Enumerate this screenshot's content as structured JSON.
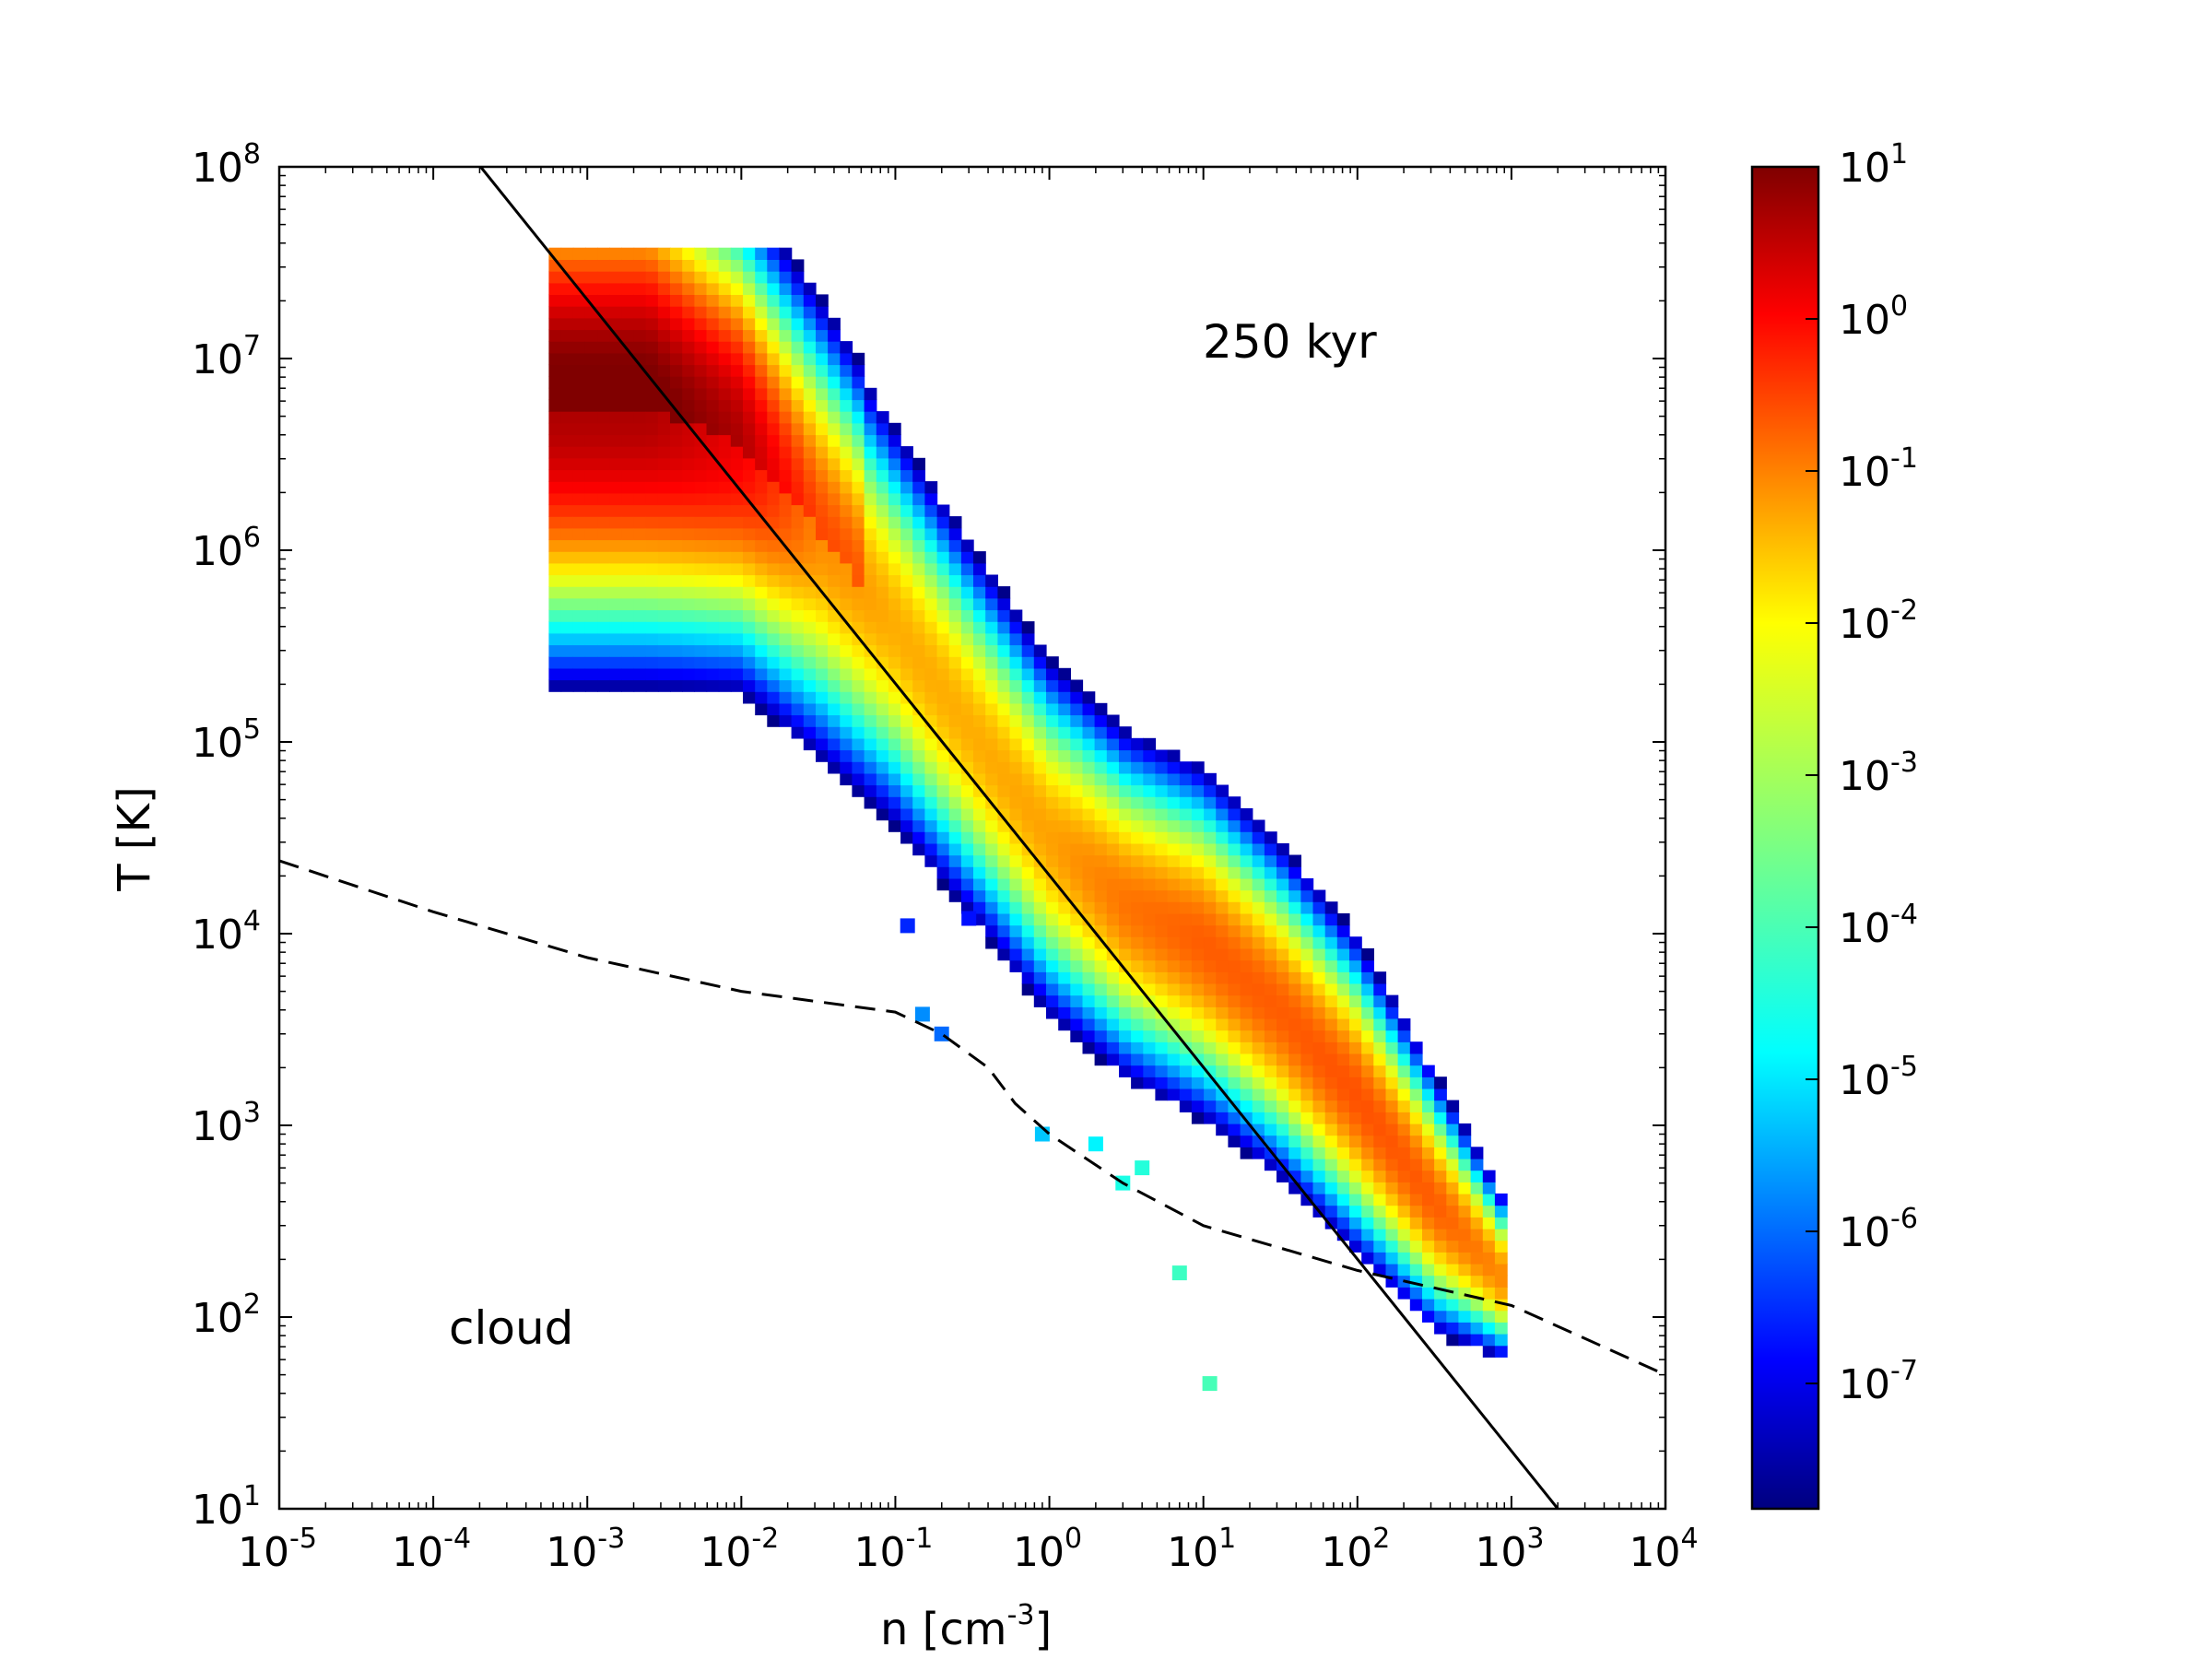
{
  "chart_data": {
    "type": "heatmap",
    "annotations": [
      {
        "text": "250 kyr"
      },
      {
        "text": "cloud"
      }
    ],
    "x_axis": {
      "label": "n [cm",
      "label_sup": "-3",
      "label_end": "]",
      "scale": "log",
      "lim": [
        1e-05,
        10000.0
      ],
      "ticks": [
        {
          "base": "10",
          "exp": "-5",
          "value": 1e-05
        },
        {
          "base": "10",
          "exp": "-4",
          "value": 0.0001
        },
        {
          "base": "10",
          "exp": "-3",
          "value": 0.001
        },
        {
          "base": "10",
          "exp": "-2",
          "value": 0.01
        },
        {
          "base": "10",
          "exp": "-1",
          "value": 0.1
        },
        {
          "base": "10",
          "exp": "0",
          "value": 1
        },
        {
          "base": "10",
          "exp": "1",
          "value": 10
        },
        {
          "base": "10",
          "exp": "2",
          "value": 100
        },
        {
          "base": "10",
          "exp": "3",
          "value": 1000
        },
        {
          "base": "10",
          "exp": "4",
          "value": 10000
        }
      ]
    },
    "y_axis": {
      "label": "T [K]",
      "scale": "log",
      "lim": [
        10,
        100000000.0
      ],
      "ticks": [
        {
          "base": "10",
          "exp": "1",
          "value": 10
        },
        {
          "base": "10",
          "exp": "2",
          "value": 100
        },
        {
          "base": "10",
          "exp": "3",
          "value": 1000
        },
        {
          "base": "10",
          "exp": "4",
          "value": 10000
        },
        {
          "base": "10",
          "exp": "5",
          "value": 100000
        },
        {
          "base": "10",
          "exp": "6",
          "value": 1000000
        },
        {
          "base": "10",
          "exp": "7",
          "value": 10000000
        },
        {
          "base": "10",
          "exp": "8",
          "value": 100000000
        }
      ]
    },
    "colorbar": {
      "scale": "log",
      "colormap": "jet",
      "lim": [
        1.5e-08,
        10
      ],
      "ticks": [
        {
          "base": "10",
          "exp": "1",
          "value": 10
        },
        {
          "base": "10",
          "exp": "0",
          "value": 1
        },
        {
          "base": "10",
          "exp": "-1",
          "value": 0.1
        },
        {
          "base": "10",
          "exp": "-2",
          "value": 0.01
        },
        {
          "base": "10",
          "exp": "-3",
          "value": 0.001
        },
        {
          "base": "10",
          "exp": "-4",
          "value": 0.0001
        },
        {
          "base": "10",
          "exp": "-5",
          "value": 1e-05
        },
        {
          "base": "10",
          "exp": "-6",
          "value": 1e-06
        },
        {
          "base": "10",
          "exp": "-7",
          "value": 1e-07
        }
      ]
    },
    "lines": [
      {
        "style": "solid",
        "color": "#000000",
        "x": [
          0.000203,
          2000
        ],
        "y": [
          100000000,
          10
        ]
      },
      {
        "style": "dashed",
        "color": "#000000",
        "x": [
          1e-05,
          0.0001,
          0.001,
          0.01,
          0.1,
          0.2,
          0.4,
          0.6,
          1,
          3,
          10,
          100,
          1000,
          10000
        ],
        "y": [
          24000,
          13000,
          7500,
          5000,
          3900,
          3000,
          2000,
          1300,
          900,
          500,
          300,
          175,
          115,
          50
        ]
      }
    ],
    "density_ridge": [
      {
        "logn": -2.6,
        "logT": 6.75,
        "w": 0.55,
        "peak": 0.6
      },
      {
        "logn": -2.0,
        "logT": 6.55,
        "w": 0.5,
        "peak": 0.0
      },
      {
        "logn": -1.5,
        "logT": 6.1,
        "w": 0.5,
        "peak": -1.3
      },
      {
        "logn": -1.0,
        "logT": 5.6,
        "w": 0.45,
        "peak": -1.6
      },
      {
        "logn": -0.5,
        "logT": 5.05,
        "w": 0.42,
        "peak": -1.6
      },
      {
        "logn": 0.0,
        "logT": 4.5,
        "w": 0.4,
        "peak": -1.5
      },
      {
        "logn": 0.5,
        "logT": 4.15,
        "w": 0.38,
        "peak": -1.1
      },
      {
        "logn": 1.0,
        "logT": 3.95,
        "w": 0.38,
        "peak": -0.9
      },
      {
        "logn": 1.5,
        "logT": 3.6,
        "w": 0.36,
        "peak": -0.9
      },
      {
        "logn": 2.0,
        "logT": 3.15,
        "w": 0.34,
        "peak": -0.8
      },
      {
        "logn": 2.5,
        "logT": 2.6,
        "w": 0.28,
        "peak": -0.9
      },
      {
        "logn": 2.95,
        "logT": 2.2,
        "w": 0.18,
        "peak": -1.3
      }
    ],
    "isolated_cells": [
      {
        "n": 0.15,
        "T": 3800,
        "log_value": -5.5
      },
      {
        "n": 0.2,
        "T": 3000,
        "log_value": -5.8
      },
      {
        "n": 0.9,
        "T": 900,
        "log_value": -5.0
      },
      {
        "n": 2,
        "T": 800,
        "log_value": -4.6
      },
      {
        "n": 3,
        "T": 500,
        "log_value": -4.3
      },
      {
        "n": 4,
        "T": 600,
        "log_value": -4.2
      },
      {
        "n": 7,
        "T": 170,
        "log_value": -4.0
      },
      {
        "n": 11,
        "T": 45,
        "log_value": -3.9
      },
      {
        "n": 0.3,
        "T": 12000,
        "log_value": -6.6
      },
      {
        "n": 0.12,
        "T": 11000,
        "log_value": -6.4
      }
    ]
  }
}
